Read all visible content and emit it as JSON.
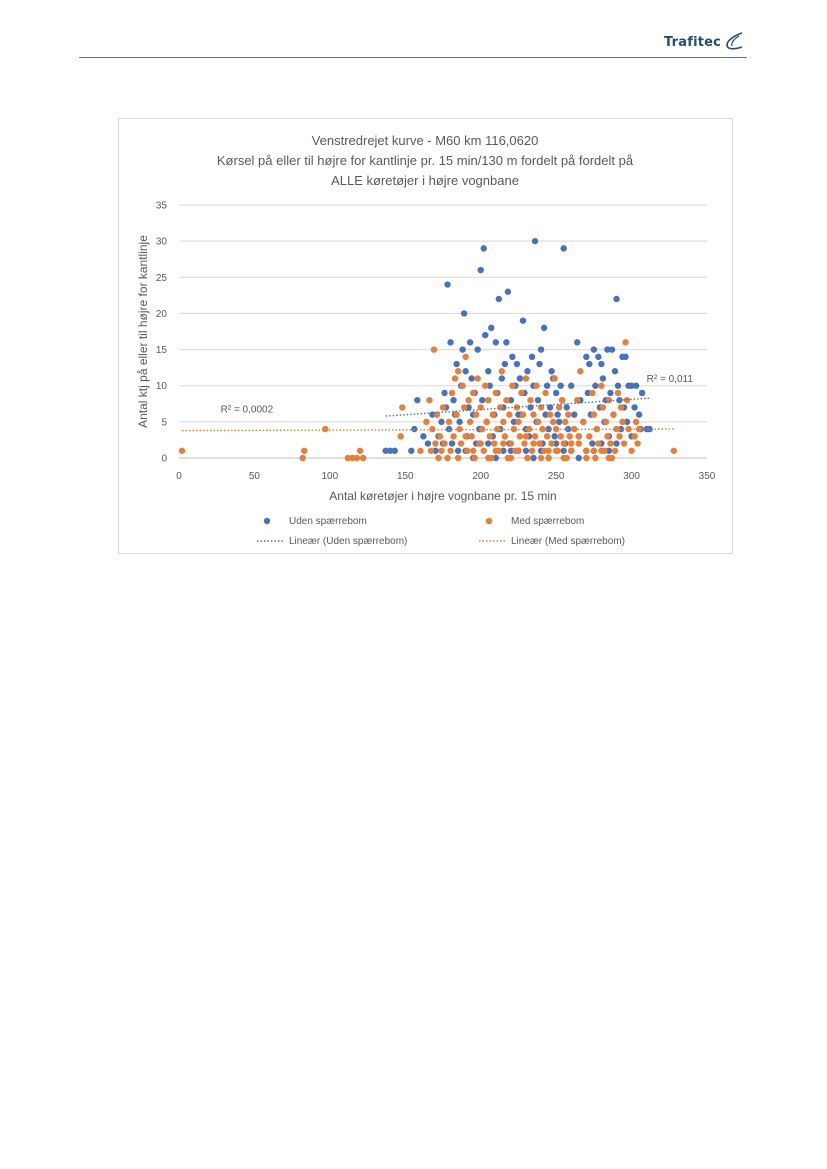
{
  "header": {
    "logo_text": "Trafitec",
    "logo_icon": "swoosh-icon",
    "logo_color": "#1f4e79"
  },
  "chart_data": {
    "type": "scatter",
    "title": [
      "Venstredrejet kurve - M60 km 116,0620",
      "Kørsel på eller til højre for kantlinje pr. 15 min/130 m fordelt på fordelt på",
      "ALLE køretøjer i højre vognbane"
    ],
    "xlabel": "Antal køretøjer i højre vognbane pr. 15 min",
    "ylabel": "Antal ktj på eller til højre for kantlinje",
    "xlim": [
      0,
      350
    ],
    "ylim": [
      0,
      35
    ],
    "xticks": [
      0,
      50,
      100,
      150,
      200,
      250,
      300,
      350
    ],
    "yticks": [
      0,
      5,
      10,
      15,
      20,
      25,
      30,
      35
    ],
    "grid": true,
    "legend_position": "bottom",
    "series": [
      {
        "name": "Uden spærrebom",
        "color": "#4472c4",
        "points": [
          [
            137,
            1
          ],
          [
            140,
            1
          ],
          [
            143,
            1
          ],
          [
            154,
            1
          ],
          [
            156,
            4
          ],
          [
            158,
            8
          ],
          [
            162,
            3
          ],
          [
            165,
            2
          ],
          [
            168,
            6
          ],
          [
            170,
            1
          ],
          [
            172,
            3
          ],
          [
            174,
            5
          ],
          [
            175,
            2
          ],
          [
            176,
            9
          ],
          [
            177,
            7
          ],
          [
            178,
            24
          ],
          [
            179,
            4
          ],
          [
            180,
            16
          ],
          [
            181,
            2
          ],
          [
            182,
            8
          ],
          [
            183,
            6
          ],
          [
            184,
            13
          ],
          [
            185,
            1
          ],
          [
            186,
            5
          ],
          [
            187,
            10
          ],
          [
            188,
            15
          ],
          [
            189,
            20
          ],
          [
            190,
            12
          ],
          [
            191,
            3
          ],
          [
            192,
            7
          ],
          [
            193,
            16
          ],
          [
            194,
            11
          ],
          [
            195,
            6
          ],
          [
            196,
            9
          ],
          [
            197,
            2
          ],
          [
            198,
            15
          ],
          [
            199,
            4
          ],
          [
            200,
            26
          ],
          [
            201,
            8
          ],
          [
            202,
            29
          ],
          [
            203,
            17
          ],
          [
            204,
            5
          ],
          [
            205,
            12
          ],
          [
            206,
            10
          ],
          [
            207,
            18
          ],
          [
            208,
            3
          ],
          [
            209,
            6
          ],
          [
            210,
            16
          ],
          [
            211,
            9
          ],
          [
            212,
            22
          ],
          [
            213,
            4
          ],
          [
            214,
            11
          ],
          [
            215,
            7
          ],
          [
            216,
            13
          ],
          [
            217,
            16
          ],
          [
            218,
            23
          ],
          [
            219,
            2
          ],
          [
            220,
            8
          ],
          [
            221,
            14
          ],
          [
            222,
            5
          ],
          [
            223,
            10
          ],
          [
            224,
            13
          ],
          [
            225,
            1
          ],
          [
            226,
            11
          ],
          [
            227,
            6
          ],
          [
            228,
            19
          ],
          [
            229,
            9
          ],
          [
            230,
            4
          ],
          [
            231,
            12
          ],
          [
            232,
            3
          ],
          [
            233,
            7
          ],
          [
            234,
            14
          ],
          [
            235,
            10
          ],
          [
            236,
            30
          ],
          [
            237,
            5
          ],
          [
            238,
            8
          ],
          [
            239,
            13
          ],
          [
            240,
            15
          ],
          [
            241,
            2
          ],
          [
            242,
            18
          ],
          [
            243,
            6
          ],
          [
            244,
            10
          ],
          [
            245,
            4
          ],
          [
            246,
            7
          ],
          [
            247,
            12
          ],
          [
            248,
            11
          ],
          [
            249,
            3
          ],
          [
            250,
            9
          ],
          [
            251,
            6
          ],
          [
            252,
            5
          ],
          [
            253,
            10
          ],
          [
            254,
            8
          ],
          [
            255,
            29
          ],
          [
            256,
            2
          ],
          [
            257,
            7
          ],
          [
            258,
            4
          ],
          [
            260,
            10
          ],
          [
            262,
            6
          ],
          [
            264,
            16
          ],
          [
            265,
            3
          ],
          [
            266,
            8
          ],
          [
            268,
            5
          ],
          [
            270,
            14
          ],
          [
            271,
            9
          ],
          [
            272,
            13
          ],
          [
            273,
            6
          ],
          [
            274,
            2
          ],
          [
            275,
            15
          ],
          [
            276,
            10
          ],
          [
            277,
            4
          ],
          [
            278,
            14
          ],
          [
            279,
            7
          ],
          [
            280,
            13
          ],
          [
            281,
            11
          ],
          [
            282,
            5
          ],
          [
            283,
            8
          ],
          [
            284,
            15
          ],
          [
            285,
            3
          ],
          [
            286,
            9
          ],
          [
            287,
            15
          ],
          [
            288,
            6
          ],
          [
            289,
            12
          ],
          [
            290,
            22
          ],
          [
            291,
            10
          ],
          [
            292,
            8
          ],
          [
            293,
            4
          ],
          [
            294,
            14
          ],
          [
            295,
            7
          ],
          [
            296,
            14
          ],
          [
            297,
            5
          ],
          [
            298,
            10
          ],
          [
            300,
            10
          ],
          [
            302,
            7
          ],
          [
            303,
            10
          ],
          [
            305,
            6
          ],
          [
            306,
            4
          ],
          [
            307,
            9
          ],
          [
            310,
            4
          ],
          [
            312,
            4
          ],
          [
            200,
            4
          ],
          [
            205,
            2
          ],
          [
            215,
            1
          ],
          [
            225,
            6
          ],
          [
            230,
            1
          ],
          [
            240,
            1
          ],
          [
            250,
            2
          ],
          [
            260,
            1
          ],
          [
            270,
            1
          ],
          [
            280,
            2
          ],
          [
            190,
            1
          ],
          [
            195,
            0
          ],
          [
            210,
            0
          ],
          [
            220,
            1
          ],
          [
            235,
            0
          ],
          [
            245,
            0
          ],
          [
            255,
            1
          ],
          [
            265,
            0
          ],
          [
            275,
            1
          ],
          [
            285,
            1
          ],
          [
            290,
            2
          ],
          [
            300,
            3
          ]
        ]
      },
      {
        "name": "Med spærrebom",
        "color": "#ed7d31",
        "points": [
          [
            2,
            1
          ],
          [
            82,
            0
          ],
          [
            83,
            1
          ],
          [
            97,
            4
          ],
          [
            112,
            0
          ],
          [
            115,
            0
          ],
          [
            118,
            0
          ],
          [
            120,
            1
          ],
          [
            122,
            0
          ],
          [
            147,
            3
          ],
          [
            148,
            7
          ],
          [
            160,
            1
          ],
          [
            164,
            5
          ],
          [
            166,
            8
          ],
          [
            167,
            1
          ],
          [
            168,
            4
          ],
          [
            169,
            15
          ],
          [
            170,
            2
          ],
          [
            171,
            6
          ],
          [
            172,
            0
          ],
          [
            173,
            3
          ],
          [
            174,
            1
          ],
          [
            175,
            7
          ],
          [
            176,
            2
          ],
          [
            178,
            0
          ],
          [
            179,
            5
          ],
          [
            180,
            1
          ],
          [
            181,
            9
          ],
          [
            182,
            3
          ],
          [
            183,
            11
          ],
          [
            184,
            6
          ],
          [
            185,
            12
          ],
          [
            186,
            4
          ],
          [
            187,
            2
          ],
          [
            188,
            10
          ],
          [
            189,
            7
          ],
          [
            190,
            14
          ],
          [
            191,
            1
          ],
          [
            192,
            8
          ],
          [
            193,
            5
          ],
          [
            194,
            3
          ],
          [
            195,
            9
          ],
          [
            196,
            0
          ],
          [
            197,
            6
          ],
          [
            198,
            11
          ],
          [
            199,
            2
          ],
          [
            200,
            7
          ],
          [
            201,
            4
          ],
          [
            202,
            1
          ],
          [
            203,
            10
          ],
          [
            204,
            5
          ],
          [
            205,
            8
          ],
          [
            206,
            3
          ],
          [
            207,
            0
          ],
          [
            208,
            6
          ],
          [
            209,
            2
          ],
          [
            210,
            9
          ],
          [
            211,
            4
          ],
          [
            212,
            1
          ],
          [
            213,
            7
          ],
          [
            214,
            12
          ],
          [
            215,
            5
          ],
          [
            216,
            3
          ],
          [
            217,
            8
          ],
          [
            218,
            0
          ],
          [
            219,
            6
          ],
          [
            220,
            2
          ],
          [
            221,
            10
          ],
          [
            222,
            4
          ],
          [
            223,
            1
          ],
          [
            224,
            7
          ],
          [
            225,
            5
          ],
          [
            226,
            3
          ],
          [
            227,
            9
          ],
          [
            228,
            6
          ],
          [
            229,
            2
          ],
          [
            230,
            11
          ],
          [
            231,
            0
          ],
          [
            232,
            4
          ],
          [
            233,
            8
          ],
          [
            234,
            1
          ],
          [
            235,
            6
          ],
          [
            236,
            3
          ],
          [
            237,
            10
          ],
          [
            238,
            5
          ],
          [
            239,
            2
          ],
          [
            240,
            7
          ],
          [
            241,
            4
          ],
          [
            242,
            1
          ],
          [
            243,
            9
          ],
          [
            244,
            3
          ],
          [
            245,
            0
          ],
          [
            246,
            6
          ],
          [
            247,
            2
          ],
          [
            248,
            5
          ],
          [
            249,
            11
          ],
          [
            250,
            4
          ],
          [
            251,
            1
          ],
          [
            252,
            7
          ],
          [
            253,
            3
          ],
          [
            254,
            8
          ],
          [
            255,
            2
          ],
          [
            256,
            5
          ],
          [
            257,
            0
          ],
          [
            258,
            6
          ],
          [
            259,
            3
          ],
          [
            260,
            1
          ],
          [
            262,
            4
          ],
          [
            264,
            8
          ],
          [
            265,
            2
          ],
          [
            266,
            12
          ],
          [
            268,
            5
          ],
          [
            270,
            1
          ],
          [
            272,
            3
          ],
          [
            274,
            9
          ],
          [
            275,
            6
          ],
          [
            276,
            0
          ],
          [
            277,
            4
          ],
          [
            278,
            2
          ],
          [
            280,
            10
          ],
          [
            281,
            7
          ],
          [
            282,
            1
          ],
          [
            283,
            5
          ],
          [
            284,
            3
          ],
          [
            285,
            8
          ],
          [
            286,
            2
          ],
          [
            287,
            0
          ],
          [
            288,
            6
          ],
          [
            289,
            1
          ],
          [
            290,
            4
          ],
          [
            291,
            9
          ],
          [
            292,
            3
          ],
          [
            293,
            7
          ],
          [
            294,
            5
          ],
          [
            295,
            2
          ],
          [
            296,
            16
          ],
          [
            297,
            8
          ],
          [
            298,
            4
          ],
          [
            300,
            1
          ],
          [
            302,
            3
          ],
          [
            303,
            5
          ],
          [
            304,
            2
          ],
          [
            305,
            4
          ],
          [
            328,
            1
          ],
          [
            185,
            0
          ],
          [
            195,
            1
          ],
          [
            205,
            0
          ],
          [
            215,
            2
          ],
          [
            225,
            1
          ],
          [
            235,
            2
          ],
          [
            245,
            1
          ],
          [
            255,
            0
          ],
          [
            265,
            3
          ],
          [
            275,
            1
          ],
          [
            285,
            0
          ],
          [
            190,
            3
          ],
          [
            200,
            2
          ],
          [
            210,
            1
          ],
          [
            220,
            0
          ],
          [
            230,
            3
          ],
          [
            240,
            0
          ],
          [
            250,
            1
          ],
          [
            260,
            2
          ],
          [
            270,
            0
          ],
          [
            280,
            1
          ]
        ]
      }
    ],
    "trendlines": [
      {
        "name": "Lineær (Uden spærrebom)",
        "color": "#4472c4",
        "from": [
          137,
          5.8
        ],
        "to": [
          313,
          8.3
        ],
        "r2_label": "R² = 0,011",
        "r2_at": [
          310,
          10.5
        ]
      },
      {
        "name": "Lineær (Med spærrebom)",
        "color": "#ed7d31",
        "from": [
          2,
          3.8
        ],
        "to": [
          328,
          4.0
        ],
        "r2_label": "R² = 0,0002",
        "r2_at": [
          45,
          6.3
        ]
      }
    ]
  }
}
